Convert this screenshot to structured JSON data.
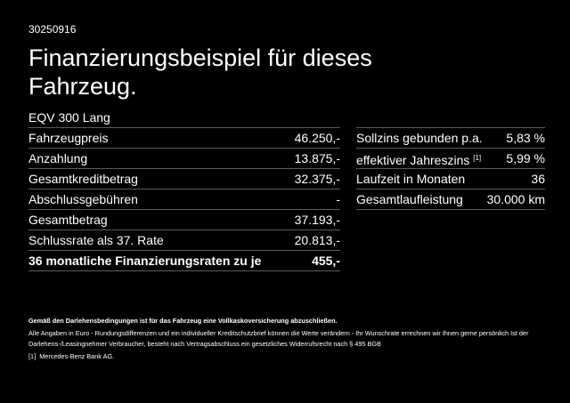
{
  "header": {
    "code": "30250916",
    "title": "Finanzierungsbeispiel für dieses Fahrzeug.",
    "model": "EQV 300 Lang"
  },
  "left_table": {
    "rows": [
      {
        "label": "Fahrzeugpreis",
        "value": "46.250,-"
      },
      {
        "label": "Anzahlung",
        "value": "13.875,-"
      },
      {
        "label": "Gesamtkreditbetrag",
        "value": "32.375,-"
      },
      {
        "label": "Abschlussgebühren",
        "value": "-"
      },
      {
        "label": "Gesamtbetrag",
        "value": "37.193,-"
      },
      {
        "label": "Schlussrate als 37. Rate",
        "value": "20.813,-"
      },
      {
        "label": "36 monatliche Finanzierungsraten zu je",
        "value": "455,-",
        "bold": true
      }
    ]
  },
  "right_table": {
    "rows": [
      {
        "label": "Sollzins gebunden p.a.",
        "value": "5,83 %"
      },
      {
        "label": "effektiver Jahreszins",
        "note": "[1]",
        "value": "5,99 %"
      },
      {
        "label": "Laufzeit in Monaten",
        "value": "36"
      },
      {
        "label": "Gesamtlaufleistung",
        "value": "30.000 km"
      }
    ]
  },
  "footnotes": {
    "insurance": "Gemäß den Darlehensbedingungen ist für das Fahrzeug eine Vollkaskoversicherung abzuschließen.",
    "disclaimer": "Alle Angaben in Euro - Rundungsdifferenzen und ein individueller Kreditschutzbrief können die Werte verändern - Ihr Wunschrate errechnen wir Ihnen gerne persönlich Ist der Darlehens-/Leasingnehmer Verbraucher, besteht nach Vertragsabschluss ein gesetzliches Widerrufsrecht nach § 495 BGB",
    "ref_mark": "[1]",
    "ref_text": "Mercedes-Benz Bank AG."
  }
}
